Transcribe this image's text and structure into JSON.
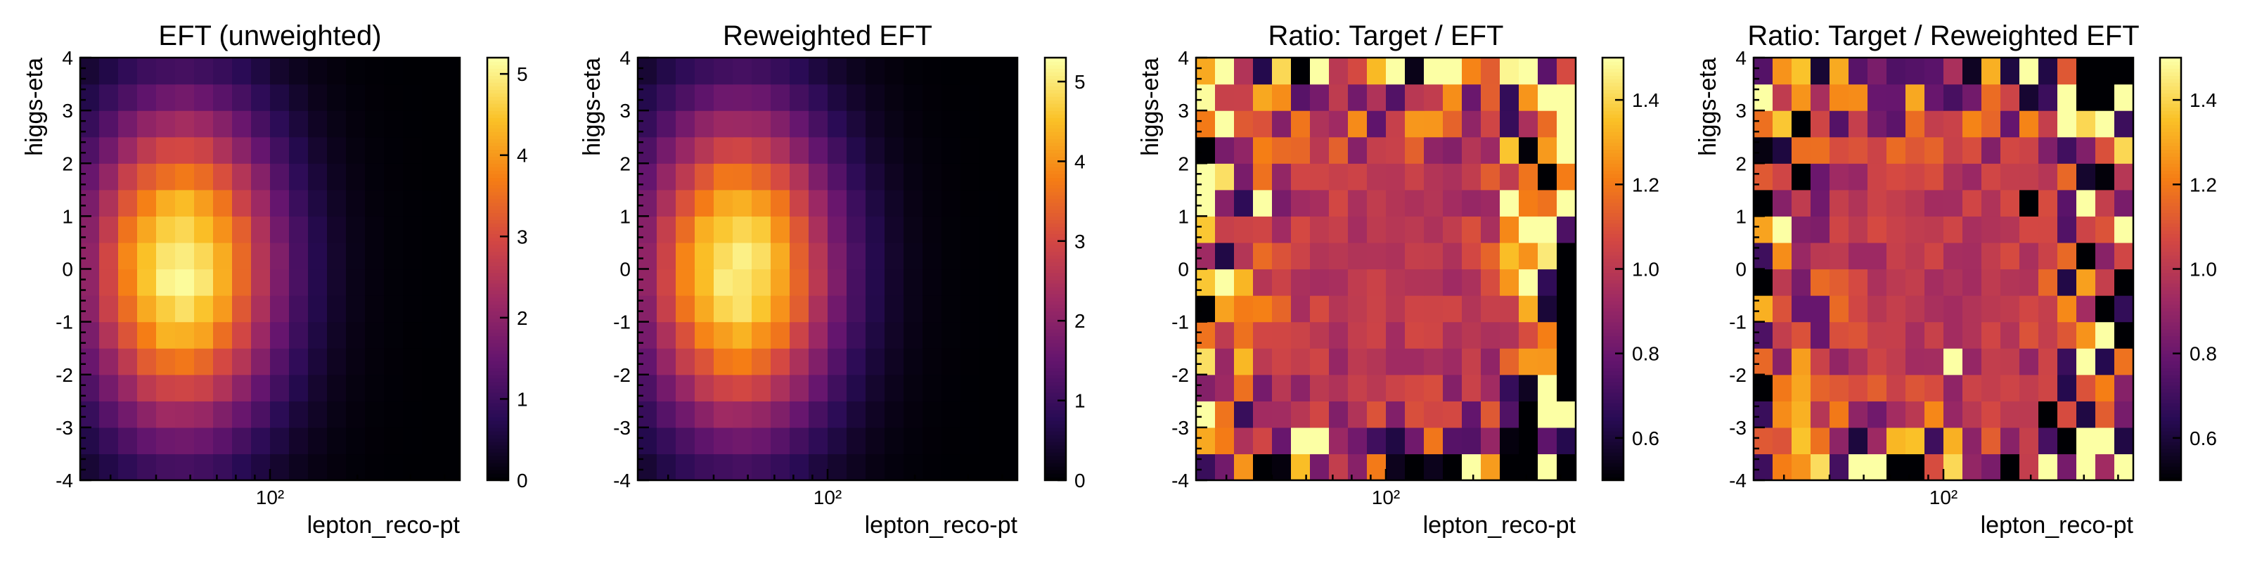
{
  "chart_data": [
    {
      "type": "heatmap",
      "title": "EFT (unweighted)",
      "xlabel": "lepton_reco-pt",
      "ylabel": "higgs-eta",
      "x_scale": "log",
      "x_tick_labels": [
        "10²"
      ],
      "y_ticks": [
        -4,
        -3,
        -2,
        -1,
        0,
        1,
        2,
        3,
        4
      ],
      "ylim": [
        -4,
        4
      ],
      "colorbar": {
        "min": 0,
        "max": 5.2,
        "ticks": [
          0,
          1,
          2,
          3,
          4,
          5
        ],
        "colormap": "inferno"
      },
      "grid": {
        "x_bins": 20,
        "y_bins": 16
      },
      "model": "gaussian",
      "peak_value": 5.1
    },
    {
      "type": "heatmap",
      "title": "Reweighted EFT",
      "xlabel": "lepton_reco-pt",
      "ylabel": "higgs-eta",
      "x_scale": "log",
      "x_tick_labels": [
        "10²"
      ],
      "y_ticks": [
        -4,
        -3,
        -2,
        -1,
        0,
        1,
        2,
        3,
        4
      ],
      "ylim": [
        -4,
        4
      ],
      "colorbar": {
        "min": 0,
        "max": 5.3,
        "ticks": [
          0,
          1,
          2,
          3,
          4,
          5
        ],
        "colormap": "inferno"
      },
      "grid": {
        "x_bins": 20,
        "y_bins": 16
      },
      "model": "gaussian",
      "peak_value": 5.15
    },
    {
      "type": "heatmap",
      "title": "Ratio: Target / EFT",
      "xlabel": "lepton_reco-pt",
      "ylabel": "higgs-eta",
      "x_scale": "log",
      "x_tick_labels": [
        "10²"
      ],
      "y_ticks": [
        -4,
        -3,
        -2,
        -1,
        0,
        1,
        2,
        3,
        4
      ],
      "ylim": [
        -4,
        4
      ],
      "colorbar": {
        "min": 0.5,
        "max": 1.5,
        "ticks": [
          0.6,
          0.8,
          1.0,
          1.2,
          1.4
        ],
        "colormap": "inferno"
      },
      "grid": {
        "x_bins": 20,
        "y_bins": 16
      },
      "model": "ratio",
      "seed": 11
    },
    {
      "type": "heatmap",
      "title": "Ratio: Target / Reweighted EFT",
      "xlabel": "lepton_reco-pt",
      "ylabel": "higgs-eta",
      "x_scale": "log",
      "x_tick_labels": [
        "10²"
      ],
      "y_ticks": [
        -4,
        -3,
        -2,
        -1,
        0,
        1,
        2,
        3,
        4
      ],
      "ylim": [
        -4,
        4
      ],
      "colorbar": {
        "min": 0.5,
        "max": 1.5,
        "ticks": [
          0.6,
          0.8,
          1.0,
          1.2,
          1.4
        ],
        "colormap": "inferno"
      },
      "grid": {
        "x_bins": 20,
        "y_bins": 16
      },
      "model": "ratio",
      "seed": 29
    }
  ]
}
